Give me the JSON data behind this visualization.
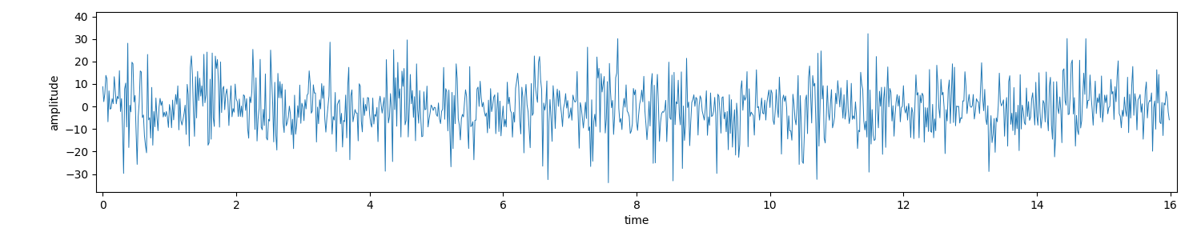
{
  "title": "",
  "xlabel": "time",
  "ylabel": "amplitude",
  "xlim": [
    -0.1,
    16.1
  ],
  "ylim": [
    -38,
    42
  ],
  "xticks": [
    0,
    2,
    4,
    6,
    8,
    10,
    12,
    14,
    16
  ],
  "yticks": [
    -30,
    -20,
    -10,
    0,
    10,
    20,
    30,
    40
  ],
  "line_color": "#1f77b4",
  "line_width": 0.7,
  "background_color": "#ffffff",
  "n_samples": 1024,
  "t_start": 0,
  "t_end": 16,
  "random_seed": 0,
  "fs": 64
}
